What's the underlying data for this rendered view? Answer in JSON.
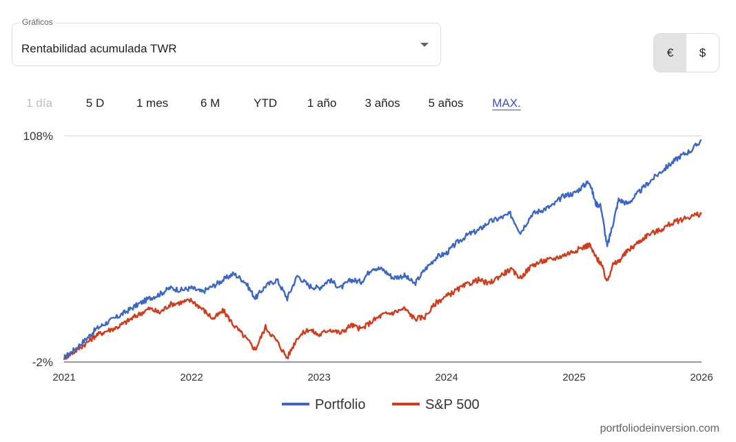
{
  "selector": {
    "legend": "Gráficos",
    "value": "Rentabilidad acumulada TWR"
  },
  "currency": {
    "options": [
      "€",
      "$"
    ],
    "selected": "€"
  },
  "ranges": {
    "items": [
      "1 día",
      "5 D",
      "1 mes",
      "6 M",
      "YTD",
      "1 año",
      "3 años",
      "5 años",
      "MAX."
    ],
    "disabled": "1 día",
    "active": "MAX."
  },
  "chart_data": {
    "type": "line",
    "x_ticks": [
      "2021",
      "2022",
      "2023",
      "2024",
      "2025",
      "2026"
    ],
    "xlim": [
      2021,
      2026
    ],
    "y_ticks": [
      "108%",
      "-2%"
    ],
    "ylim": [
      -2,
      108
    ],
    "grid": true,
    "legend_position": "bottom-center",
    "series": [
      {
        "name": "Portfolio",
        "color": "#3a66c8",
        "points": [
          [
            2021.0,
            0
          ],
          [
            2021.08,
            4
          ],
          [
            2021.17,
            9
          ],
          [
            2021.25,
            14
          ],
          [
            2021.33,
            17
          ],
          [
            2021.42,
            20
          ],
          [
            2021.5,
            23
          ],
          [
            2021.58,
            26
          ],
          [
            2021.67,
            29
          ],
          [
            2021.75,
            31
          ],
          [
            2021.83,
            34
          ],
          [
            2021.92,
            33
          ],
          [
            2022.0,
            34
          ],
          [
            2022.08,
            32
          ],
          [
            2022.17,
            35
          ],
          [
            2022.25,
            38
          ],
          [
            2022.33,
            41
          ],
          [
            2022.42,
            37
          ],
          [
            2022.5,
            29
          ],
          [
            2022.58,
            35
          ],
          [
            2022.67,
            38
          ],
          [
            2022.75,
            29
          ],
          [
            2022.83,
            40
          ],
          [
            2022.92,
            35
          ],
          [
            2023.0,
            34
          ],
          [
            2023.08,
            38
          ],
          [
            2023.17,
            34
          ],
          [
            2023.25,
            38
          ],
          [
            2023.33,
            37
          ],
          [
            2023.42,
            44
          ],
          [
            2023.5,
            43
          ],
          [
            2023.58,
            39
          ],
          [
            2023.67,
            40
          ],
          [
            2023.75,
            36
          ],
          [
            2023.83,
            43
          ],
          [
            2023.92,
            49
          ],
          [
            2024.0,
            51
          ],
          [
            2024.08,
            56
          ],
          [
            2024.17,
            60
          ],
          [
            2024.25,
            62
          ],
          [
            2024.33,
            66
          ],
          [
            2024.42,
            68
          ],
          [
            2024.5,
            70
          ],
          [
            2024.58,
            61
          ],
          [
            2024.67,
            70
          ],
          [
            2024.75,
            72
          ],
          [
            2024.83,
            74
          ],
          [
            2024.92,
            79
          ],
          [
            2025.0,
            80
          ],
          [
            2025.08,
            84
          ],
          [
            2025.12,
            86
          ],
          [
            2025.17,
            75
          ],
          [
            2025.21,
            74
          ],
          [
            2025.26,
            54
          ],
          [
            2025.3,
            64
          ],
          [
            2025.35,
            77
          ],
          [
            2025.42,
            75
          ],
          [
            2025.5,
            80
          ],
          [
            2025.58,
            85
          ],
          [
            2025.67,
            90
          ],
          [
            2025.75,
            94
          ],
          [
            2025.83,
            98
          ],
          [
            2025.92,
            101
          ],
          [
            2026.0,
            106
          ]
        ]
      },
      {
        "name": "S&P 500",
        "color": "#d13b1c",
        "points": [
          [
            2021.0,
            0
          ],
          [
            2021.08,
            3
          ],
          [
            2021.17,
            7
          ],
          [
            2021.25,
            11
          ],
          [
            2021.33,
            13
          ],
          [
            2021.42,
            15
          ],
          [
            2021.5,
            18
          ],
          [
            2021.58,
            21
          ],
          [
            2021.67,
            24
          ],
          [
            2021.75,
            22
          ],
          [
            2021.83,
            26
          ],
          [
            2021.92,
            27
          ],
          [
            2022.0,
            28
          ],
          [
            2022.08,
            24
          ],
          [
            2022.17,
            19
          ],
          [
            2022.25,
            23
          ],
          [
            2022.33,
            16
          ],
          [
            2022.42,
            10
          ],
          [
            2022.5,
            4
          ],
          [
            2022.58,
            15
          ],
          [
            2022.67,
            8
          ],
          [
            2022.75,
            0
          ],
          [
            2022.83,
            10
          ],
          [
            2022.92,
            14
          ],
          [
            2023.0,
            11
          ],
          [
            2023.08,
            14
          ],
          [
            2023.17,
            12
          ],
          [
            2023.25,
            16
          ],
          [
            2023.33,
            14
          ],
          [
            2023.42,
            18
          ],
          [
            2023.5,
            21
          ],
          [
            2023.58,
            22
          ],
          [
            2023.67,
            24
          ],
          [
            2023.75,
            19
          ],
          [
            2023.83,
            20
          ],
          [
            2023.92,
            27
          ],
          [
            2024.0,
            30
          ],
          [
            2024.08,
            33
          ],
          [
            2024.17,
            36
          ],
          [
            2024.25,
            38
          ],
          [
            2024.33,
            36
          ],
          [
            2024.42,
            40
          ],
          [
            2024.5,
            43
          ],
          [
            2024.58,
            39
          ],
          [
            2024.67,
            45
          ],
          [
            2024.75,
            47
          ],
          [
            2024.83,
            48
          ],
          [
            2024.92,
            50
          ],
          [
            2025.0,
            52
          ],
          [
            2025.08,
            54
          ],
          [
            2025.12,
            55
          ],
          [
            2025.17,
            49
          ],
          [
            2025.21,
            46
          ],
          [
            2025.26,
            37
          ],
          [
            2025.3,
            45
          ],
          [
            2025.35,
            47
          ],
          [
            2025.42,
            52
          ],
          [
            2025.5,
            56
          ],
          [
            2025.58,
            60
          ],
          [
            2025.67,
            62
          ],
          [
            2025.75,
            65
          ],
          [
            2025.83,
            67
          ],
          [
            2025.92,
            69
          ],
          [
            2026.0,
            70
          ]
        ]
      }
    ]
  },
  "footer": {
    "source": "portfoliodeinversion.com"
  }
}
